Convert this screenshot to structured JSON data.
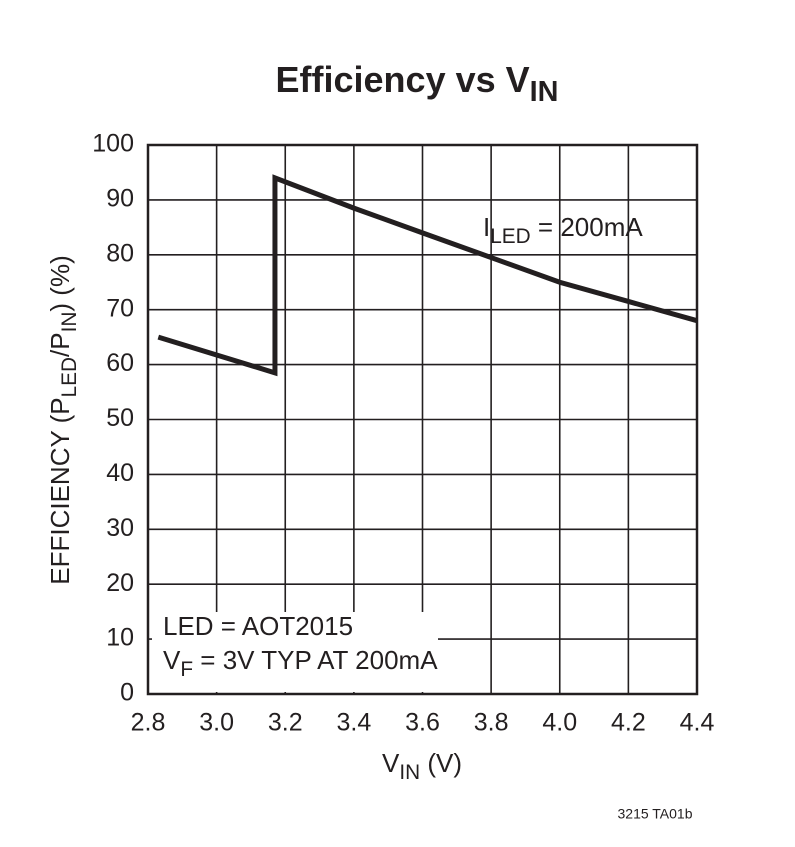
{
  "chart_data": {
    "type": "line",
    "title": [
      {
        "text": "Efficiency vs V"
      },
      {
        "text": "IN",
        "sub": true
      }
    ],
    "x_label": [
      {
        "text": "V"
      },
      {
        "text": "IN",
        "sub": true
      },
      {
        "text": " (V)"
      }
    ],
    "y_label": [
      {
        "text": "EFFICIENCY (P"
      },
      {
        "text": "LED",
        "sub": true
      },
      {
        "text": "/P"
      },
      {
        "text": "IN",
        "sub": true
      },
      {
        "text": ") (%)"
      }
    ],
    "annotations": [
      [
        {
          "text": "I"
        },
        {
          "text": "LED",
          "sub": true
        },
        {
          "text": " = 200mA"
        }
      ],
      [
        {
          "text": "LED = AOT2015"
        }
      ],
      [
        {
          "text": "V"
        },
        {
          "text": "F",
          "sub": true
        },
        {
          "text": " = 3V TYP AT 200mA"
        }
      ]
    ],
    "footnote": "3215 TA01b",
    "x": [
      2.83,
      3.17,
      3.17,
      3.4,
      3.6,
      3.8,
      4.0,
      4.2,
      4.4
    ],
    "values": [
      65,
      58.5,
      94,
      88.5,
      84,
      79.5,
      75,
      71.5,
      68
    ],
    "color": "#231f20",
    "xlim": [
      2.8,
      4.4
    ],
    "xticks": [
      2.8,
      {
        "value": 3,
        "label": "3.0"
      },
      3.2,
      3.4,
      3.6,
      3.8,
      {
        "value": 4,
        "label": "4.0"
      },
      4.2,
      4.4
    ],
    "ylim": [
      0,
      100
    ],
    "yticks": [
      0,
      10,
      20,
      30,
      40,
      50,
      60,
      70,
      80,
      90,
      100
    ],
    "grid": true
  }
}
